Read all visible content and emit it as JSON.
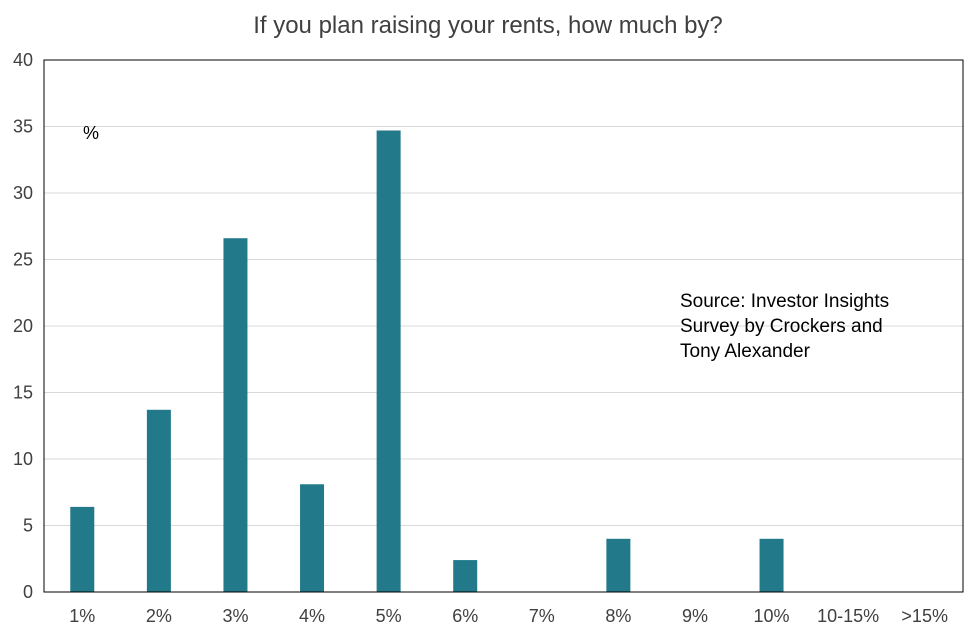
{
  "chart_data": {
    "type": "bar",
    "title": "If you plan raising your rents, how much by?",
    "ylabel": "%",
    "xlabel": "",
    "categories": [
      "1%",
      "2%",
      "3%",
      "4%",
      "5%",
      "6%",
      "7%",
      "8%",
      "9%",
      "10%",
      "10-15%",
      ">15%"
    ],
    "values": [
      6.4,
      13.7,
      26.6,
      8.1,
      34.7,
      2.4,
      0,
      4.0,
      0,
      4.0,
      0,
      0
    ],
    "ylim": [
      0,
      40
    ],
    "yticks": [
      "0",
      "5",
      "10",
      "15",
      "20",
      "25",
      "30",
      "35",
      "40"
    ],
    "ytick_values": [
      0,
      5,
      10,
      15,
      20,
      25,
      30,
      35,
      40
    ],
    "grid": true,
    "legend": "none",
    "annotations": [
      {
        "id": "source",
        "lines": [
          "Source: Investor Insights",
          "Survey by Crockers and",
          "Tony Alexander"
        ]
      }
    ],
    "colors": {
      "bar": "#217989",
      "grid": "#d9d9d9",
      "axis": "#000000",
      "text": "#404040"
    }
  }
}
